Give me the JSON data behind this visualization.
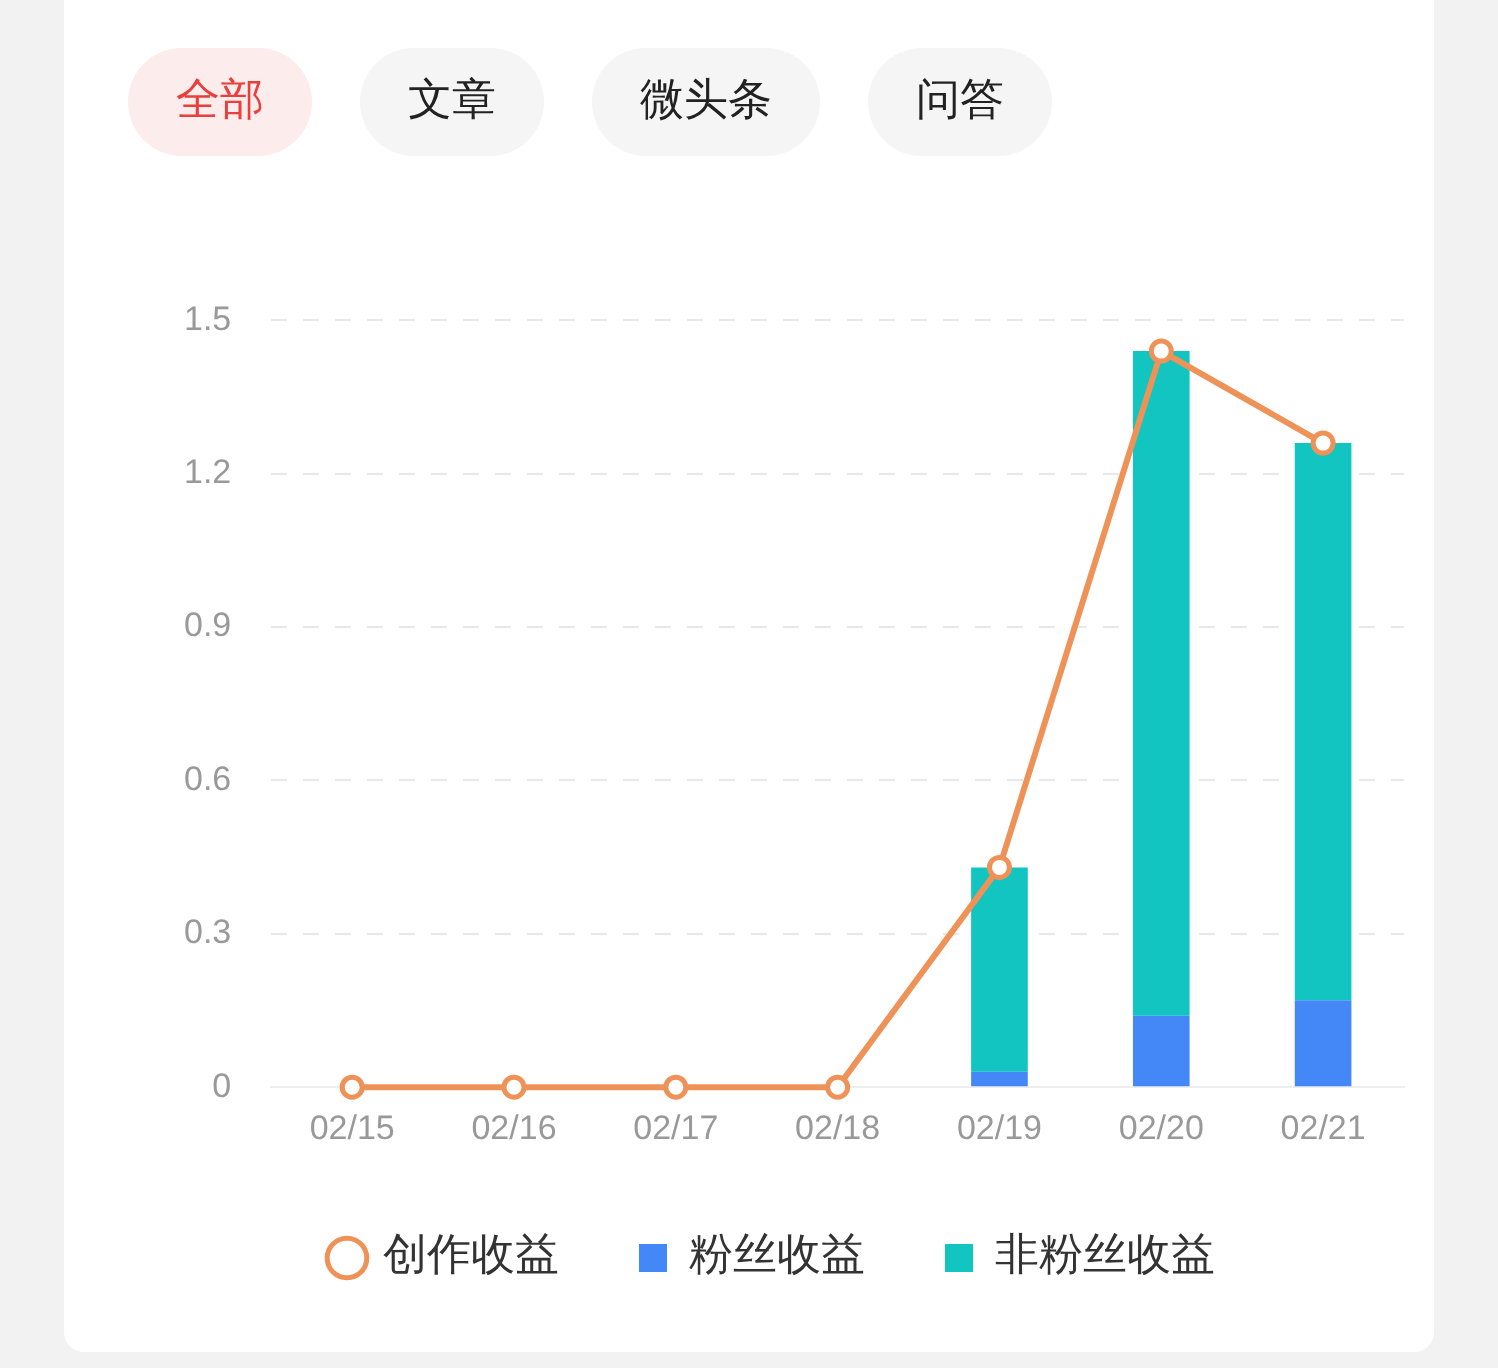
{
  "chart_data": {
    "type": "bar",
    "stacked": true,
    "annotations": [
      "全部",
      "文章",
      "微头条",
      "问答"
    ],
    "categories": [
      "02/15",
      "02/16",
      "02/17",
      "02/18",
      "02/19",
      "02/20",
      "02/21"
    ],
    "series": [
      {
        "name": "创作收益",
        "type": "line",
        "color": "#ef9257",
        "values": [
          0,
          0,
          0,
          0,
          0.43,
          1.44,
          1.26
        ]
      },
      {
        "name": "粉丝收益",
        "color": "#4487f7",
        "values": [
          0,
          0,
          0,
          0,
          0.03,
          0.14,
          0.17
        ]
      },
      {
        "name": "非粉丝收益",
        "color": "#12c5c1",
        "values": [
          0,
          0,
          0,
          0,
          0.4,
          1.3,
          1.09
        ]
      }
    ],
    "ylim": [
      0,
      1.5
    ],
    "yticks": [
      0,
      0.3,
      0.6,
      0.9,
      1.2,
      1.5
    ],
    "grid": "y",
    "legend": "bottom",
    "marker": "circle"
  }
}
